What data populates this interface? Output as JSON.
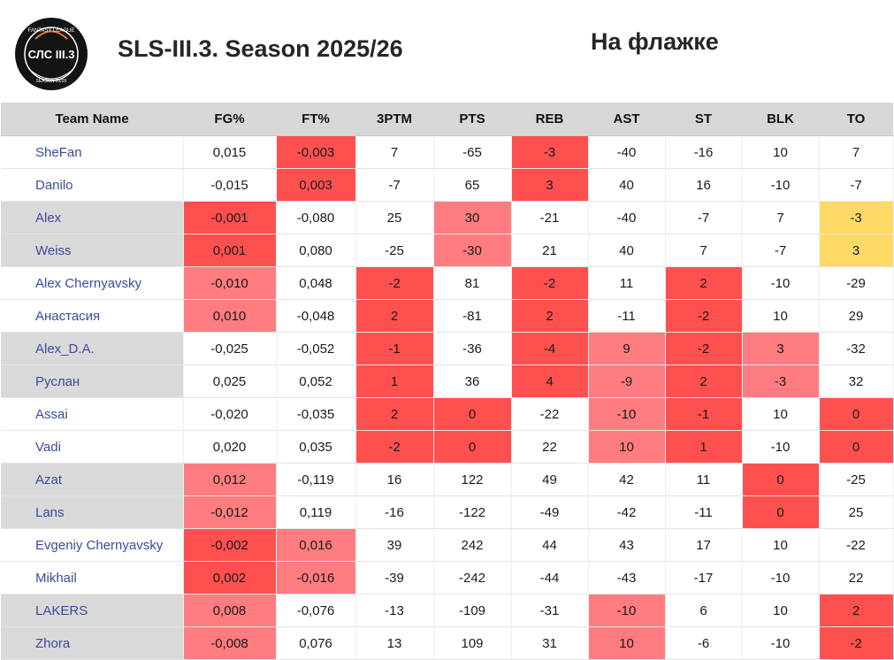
{
  "header": {
    "logo_text": "СЛС III.3",
    "logo_ring_top": "FANTASY LEAGUE",
    "logo_ring_bottom": "SEASON 25/26",
    "title": "SLS-III.3. Season 2025/26",
    "subtitle": "На флажке"
  },
  "colors": {
    "red": "#ff5050",
    "pink": "#ff7c80",
    "yellow": "#ffd966",
    "group_band": "#d9d9d9",
    "team_text": "#3b4a9c"
  },
  "table": {
    "columns": [
      "Team Name",
      "FG%",
      "FT%",
      "3PTM",
      "PTS",
      "REB",
      "AST",
      "ST",
      "BLK",
      "TO"
    ],
    "rows": [
      {
        "team": "SheFan",
        "values": [
          "0,015",
          "-0,003",
          "7",
          "-65",
          "-3",
          "-40",
          "-16",
          "10",
          "7"
        ]
      },
      {
        "team": "Danilo",
        "values": [
          "-0,015",
          "0,003",
          "-7",
          "65",
          "3",
          "40",
          "16",
          "-10",
          "-7"
        ]
      },
      {
        "team": "Alex",
        "values": [
          "-0,001",
          "-0,080",
          "25",
          "30",
          "-21",
          "-40",
          "-7",
          "7",
          "-3"
        ]
      },
      {
        "team": "Weiss",
        "values": [
          "0,001",
          "0,080",
          "-25",
          "-30",
          "21",
          "40",
          "7",
          "-7",
          "3"
        ]
      },
      {
        "team": "Alex Chernyavsky",
        "values": [
          "-0,010",
          "0,048",
          "-2",
          "81",
          "-2",
          "11",
          "2",
          "-10",
          "-29"
        ]
      },
      {
        "team": "Анастасия",
        "values": [
          "0,010",
          "-0,048",
          "2",
          "-81",
          "2",
          "-11",
          "-2",
          "10",
          "29"
        ]
      },
      {
        "team": "Alex_D.A.",
        "values": [
          "-0,025",
          "-0,052",
          "-1",
          "-36",
          "-4",
          "9",
          "-2",
          "3",
          "-32"
        ]
      },
      {
        "team": "Руслан",
        "values": [
          "0,025",
          "0,052",
          "1",
          "36",
          "4",
          "-9",
          "2",
          "-3",
          "32"
        ]
      },
      {
        "team": "Assai",
        "values": [
          "-0,020",
          "-0,035",
          "2",
          "0",
          "-22",
          "-10",
          "-1",
          "10",
          "0"
        ]
      },
      {
        "team": "Vadi",
        "values": [
          "0,020",
          "0,035",
          "-2",
          "0",
          "22",
          "10",
          "1",
          "-10",
          "0"
        ]
      },
      {
        "team": "Azat",
        "values": [
          "0,012",
          "-0,119",
          "16",
          "122",
          "49",
          "42",
          "11",
          "0",
          "-25"
        ]
      },
      {
        "team": "Lans",
        "values": [
          "-0,012",
          "0,119",
          "-16",
          "-122",
          "-49",
          "-42",
          "-11",
          "0",
          "25"
        ]
      },
      {
        "team": "Evgeniy Chernyavsky",
        "values": [
          "-0,002",
          "0,016",
          "39",
          "242",
          "44",
          "43",
          "17",
          "10",
          "-22"
        ]
      },
      {
        "team": "Mikhail",
        "values": [
          "0,002",
          "-0,016",
          "-39",
          "-242",
          "-44",
          "-43",
          "-17",
          "-10",
          "22"
        ]
      },
      {
        "team": "LAKERS",
        "values": [
          "0,008",
          "-0,076",
          "-13",
          "-109",
          "-31",
          "-10",
          "6",
          "10",
          "2"
        ]
      },
      {
        "team": "Zhora",
        "values": [
          "-0,008",
          "0,076",
          "13",
          "109",
          "31",
          "10",
          "-6",
          "-10",
          "-2"
        ]
      }
    ]
  }
}
